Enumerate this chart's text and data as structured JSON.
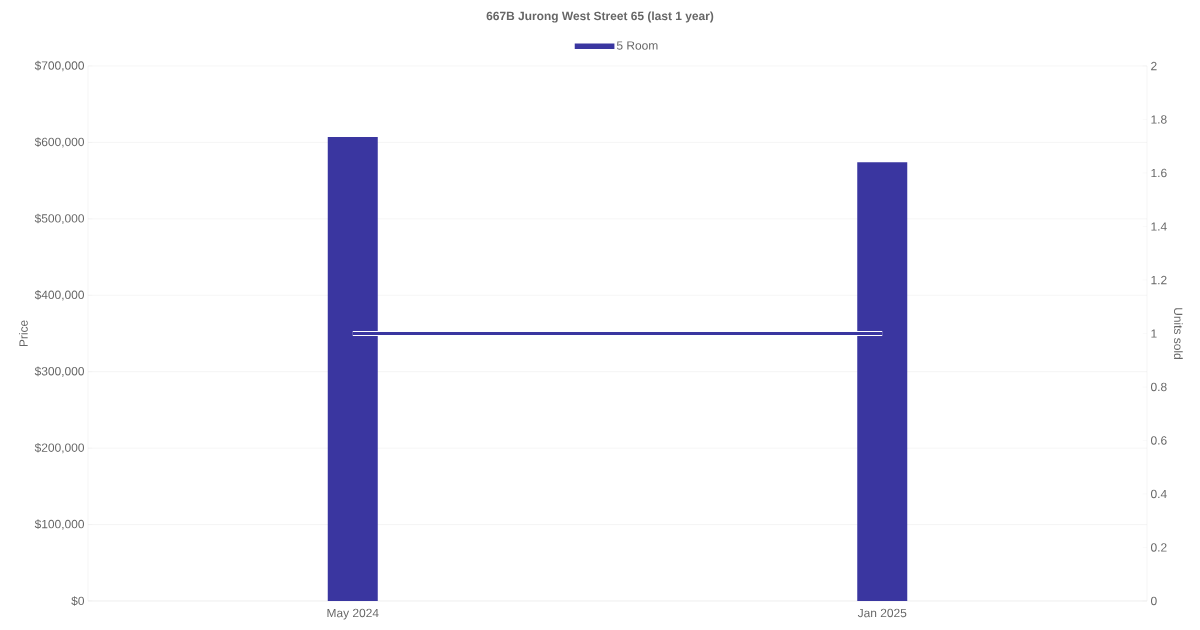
{
  "chart_data": {
    "type": "bar",
    "title": "667B Jurong West Street 65 (last 1 year)",
    "categories": [
      "May 2024",
      "Jan 2025"
    ],
    "series": [
      {
        "name": "5 Room",
        "color": "#3a36a0",
        "values": [
          607000,
          574000
        ]
      },
      {
        "type": "line",
        "axis": "y2",
        "color": "#3a36a0",
        "values": [
          1,
          1
        ]
      }
    ],
    "ylabel": "Price",
    "y2label": "Units sold",
    "ylim": [
      0,
      700000
    ],
    "yticks": [
      {
        "value": 0,
        "label": "$0"
      },
      {
        "value": 100000,
        "label": "$100,000"
      },
      {
        "value": 200000,
        "label": "$200,000"
      },
      {
        "value": 300000,
        "label": "$300,000"
      },
      {
        "value": 400000,
        "label": "$400,000"
      },
      {
        "value": 500000,
        "label": "$500,000"
      },
      {
        "value": 600000,
        "label": "$600,000"
      },
      {
        "value": 700000,
        "label": "$700,000"
      }
    ],
    "y2lim": [
      0,
      2
    ],
    "y2ticks": [
      0,
      0.2,
      0.4,
      0.6,
      0.8,
      1,
      1.2,
      1.4,
      1.6,
      1.8,
      2
    ],
    "grid": "y",
    "legend": "top"
  }
}
